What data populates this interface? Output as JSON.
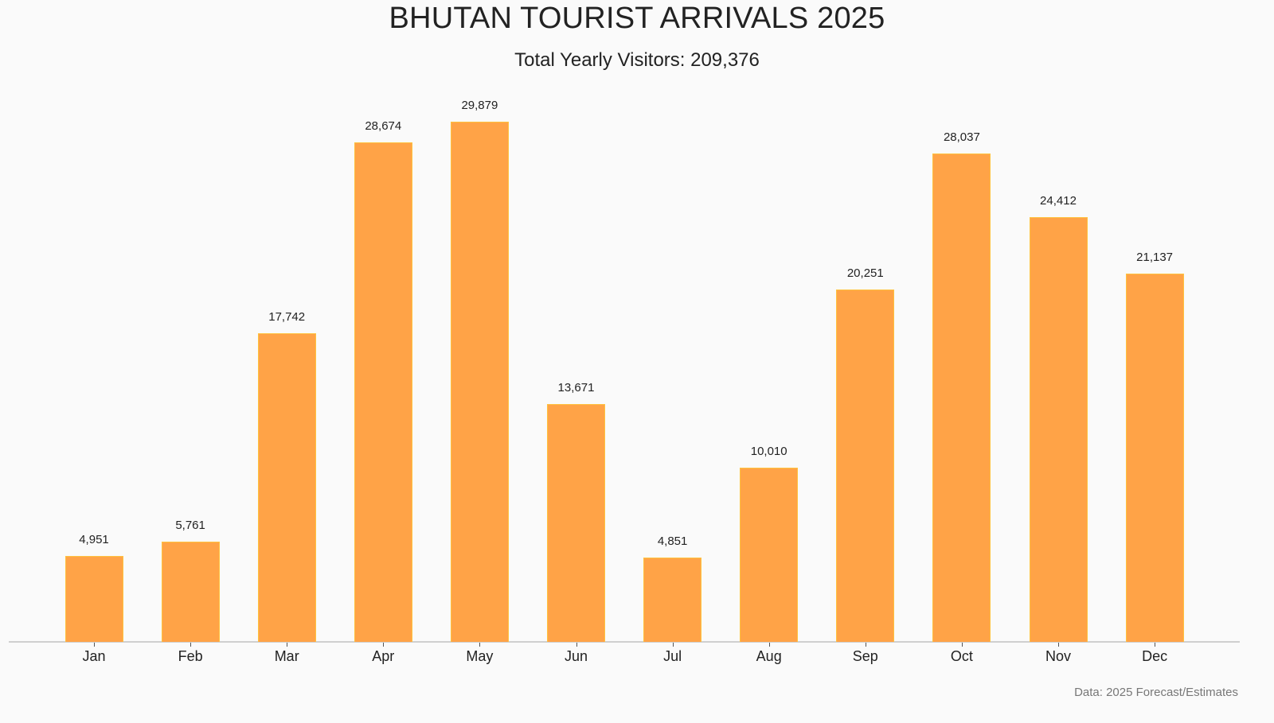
{
  "header": {
    "title": "BHUTAN TOURIST ARRIVALS 2025",
    "subtitle": "Total Yearly Visitors: 209,376"
  },
  "footer": {
    "source_note": "Data: 2025 Forecast/Estimates"
  },
  "colors": {
    "bar_fill": "#ffa347",
    "bar_edge": "#ffc23e",
    "background": "#fafafa",
    "axis": "#cfcfcf",
    "text": "#222222",
    "footnote": "#777777"
  },
  "bars": [
    {
      "month": "Jan",
      "value": 4951,
      "label": "4,951"
    },
    {
      "month": "Feb",
      "value": 5761,
      "label": "5,761"
    },
    {
      "month": "Mar",
      "value": 17742,
      "label": "17,742"
    },
    {
      "month": "Apr",
      "value": 28674,
      "label": "28,674"
    },
    {
      "month": "May",
      "value": 29879,
      "label": "29,879"
    },
    {
      "month": "Jun",
      "value": 13671,
      "label": "13,671"
    },
    {
      "month": "Jul",
      "value": 4851,
      "label": "4,851"
    },
    {
      "month": "Aug",
      "value": 10010,
      "label": "10,010"
    },
    {
      "month": "Sep",
      "value": 20251,
      "label": "20,251"
    },
    {
      "month": "Oct",
      "value": 28037,
      "label": "28,037"
    },
    {
      "month": "Nov",
      "value": 24412,
      "label": "24,412"
    },
    {
      "month": "Dec",
      "value": 21137,
      "label": "21,137"
    }
  ],
  "chart_data": {
    "type": "bar",
    "title": "BHUTAN TOURIST ARRIVALS 2025",
    "subtitle": "Total Yearly Visitors: 209,376",
    "categories": [
      "Jan",
      "Feb",
      "Mar",
      "Apr",
      "May",
      "Jun",
      "Jul",
      "Aug",
      "Sep",
      "Oct",
      "Nov",
      "Dec"
    ],
    "values": [
      4951,
      5761,
      17742,
      28674,
      29879,
      13671,
      4851,
      10010,
      20251,
      28037,
      24412,
      21137
    ],
    "xlabel": "",
    "ylabel": "",
    "ylim": [
      0,
      29879
    ],
    "grid": false,
    "y_axis_visible": false,
    "data_labels": true,
    "legend": null,
    "annotations": [
      "Data: 2025 Forecast/Estimates"
    ]
  }
}
